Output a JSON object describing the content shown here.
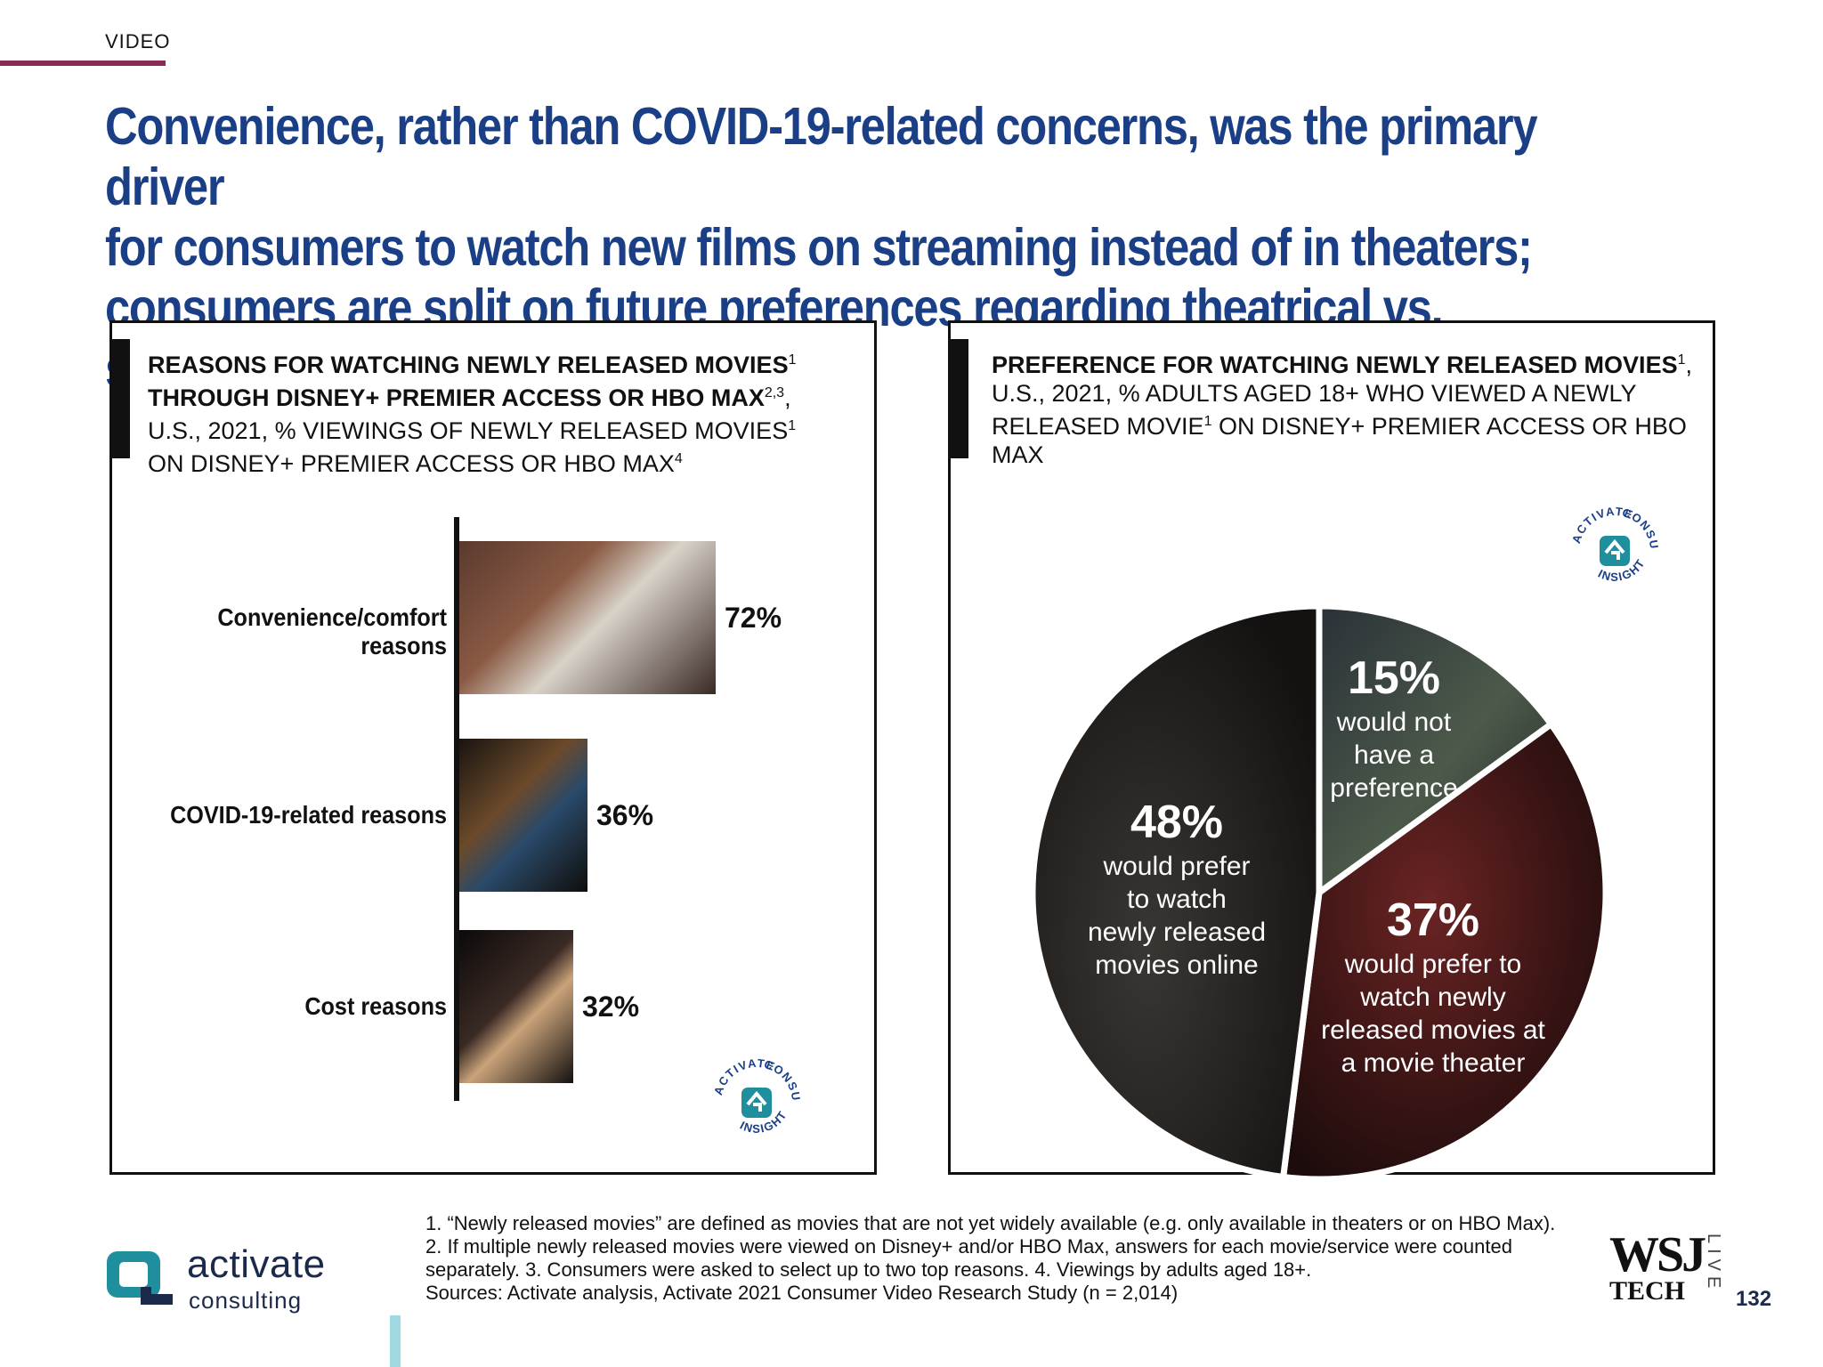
{
  "section": "VIDEO",
  "headline": [
    "Convenience, rather than COVID-19-related concerns, was the primary driver",
    "for consumers to watch new films on streaming instead of in theaters;",
    "consumers are split on future preferences regarding theatrical vs. streaming"
  ],
  "left_panel": {
    "title_bold_1": "REASONS FOR WATCHING NEWLY RELEASED MOVIES",
    "title_sup_1": "1",
    "title_bold_2": "THROUGH DISNEY+ PREMIER ACCESS OR HBO MAX",
    "title_sup_2": "2,3",
    "title_rest_1": ",",
    "title_rest_2": "U.S., 2021, % VIEWINGS OF NEWLY RELEASED MOVIES",
    "title_sup_3": "1",
    "title_rest_3": "ON DISNEY+ PREMIER ACCESS OR HBO MAX",
    "title_sup_4": "4"
  },
  "right_panel": {
    "title_bold": "PREFERENCE FOR WATCHING NEWLY RELEASED MOVIES",
    "title_sup_1": "1",
    "title_rest_1": ", U.S., 2021, % ADULTS AGED 18+ WHO VIEWED A NEWLY RELEASED MOVIE",
    "title_sup_2": "1",
    "title_rest_2": " ON DISNEY+ PREMIER ACCESS OR HBO MAX"
  },
  "badge": {
    "top_text": "ACTIVATE",
    "right_text": "CONSUMER",
    "bottom_text": "INSIGHT"
  },
  "chart_data": [
    {
      "type": "bar",
      "orientation": "horizontal",
      "categories": [
        "Convenience/comfort reasons",
        "COVID-19-related reasons",
        "Cost reasons"
      ],
      "values": [
        72,
        36,
        32
      ],
      "value_labels": [
        "72%",
        "36%",
        "32%"
      ],
      "unit": "%",
      "xlim": [
        0,
        100
      ]
    },
    {
      "type": "pie",
      "slices": [
        {
          "value": 15,
          "value_label": "15%",
          "label": "would not have a preference",
          "lines": [
            "would not",
            "have a",
            "preference"
          ]
        },
        {
          "value": 37,
          "value_label": "37%",
          "label": "would prefer to watch newly released movies at a movie theater",
          "lines": [
            "would prefer to",
            "watch newly",
            "released movies at",
            "a movie theater"
          ]
        },
        {
          "value": 48,
          "value_label": "48%",
          "label": "would prefer to watch newly released movies online",
          "lines": [
            "would prefer",
            "to watch",
            "newly released",
            "movies online"
          ]
        }
      ]
    }
  ],
  "footnotes": [
    "1. “Newly released movies” are defined as movies that are not yet widely available (e.g. only available in theaters or on HBO Max).",
    "2. If multiple newly released movies were viewed on Disney+ and/or HBO Max, answers for each movie/service were counted",
    "separately.  3. Consumers were asked to select up to two top reasons.  4. Viewings by adults aged 18+.",
    "Sources: Activate analysis, Activate 2021 Consumer Video Research Study (n = 2,014)"
  ],
  "logo": {
    "name": "activate",
    "sub": "consulting"
  },
  "wsj": {
    "main": "WSJ",
    "sub": "TECH",
    "live": "LIVE"
  },
  "page_number": "132",
  "colors": {
    "headline": "#1a3f86",
    "section_rule": "#8a2a56",
    "teal": "#1f8f9e"
  }
}
